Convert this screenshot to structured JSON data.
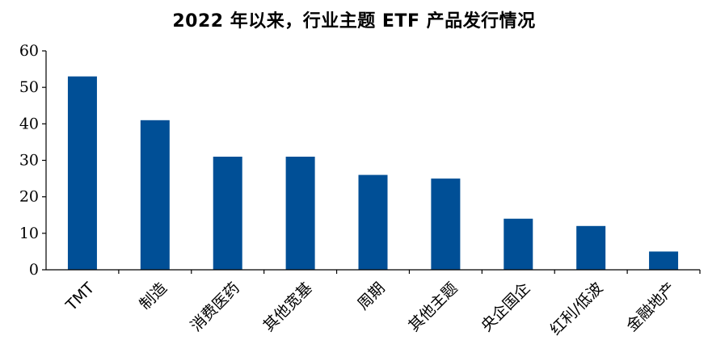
{
  "chart_data": {
    "type": "bar",
    "title": "2022 年以来，行业主题 ETF 产品发行情况",
    "categories": [
      "TMT",
      "制造",
      "消费医药",
      "其他宽基",
      "周期",
      "其他主题",
      "央企国企",
      "红利/低波",
      "金融地产"
    ],
    "values": [
      53,
      41,
      31,
      31,
      26,
      25,
      14,
      12,
      5
    ],
    "yticks": [
      0,
      10,
      20,
      30,
      40,
      50,
      60
    ],
    "ylim": [
      0,
      60
    ],
    "xlabel": "",
    "ylabel": "",
    "grid": false,
    "legend": "none",
    "bar_color": "#004f96",
    "axis_color": "#000000"
  }
}
